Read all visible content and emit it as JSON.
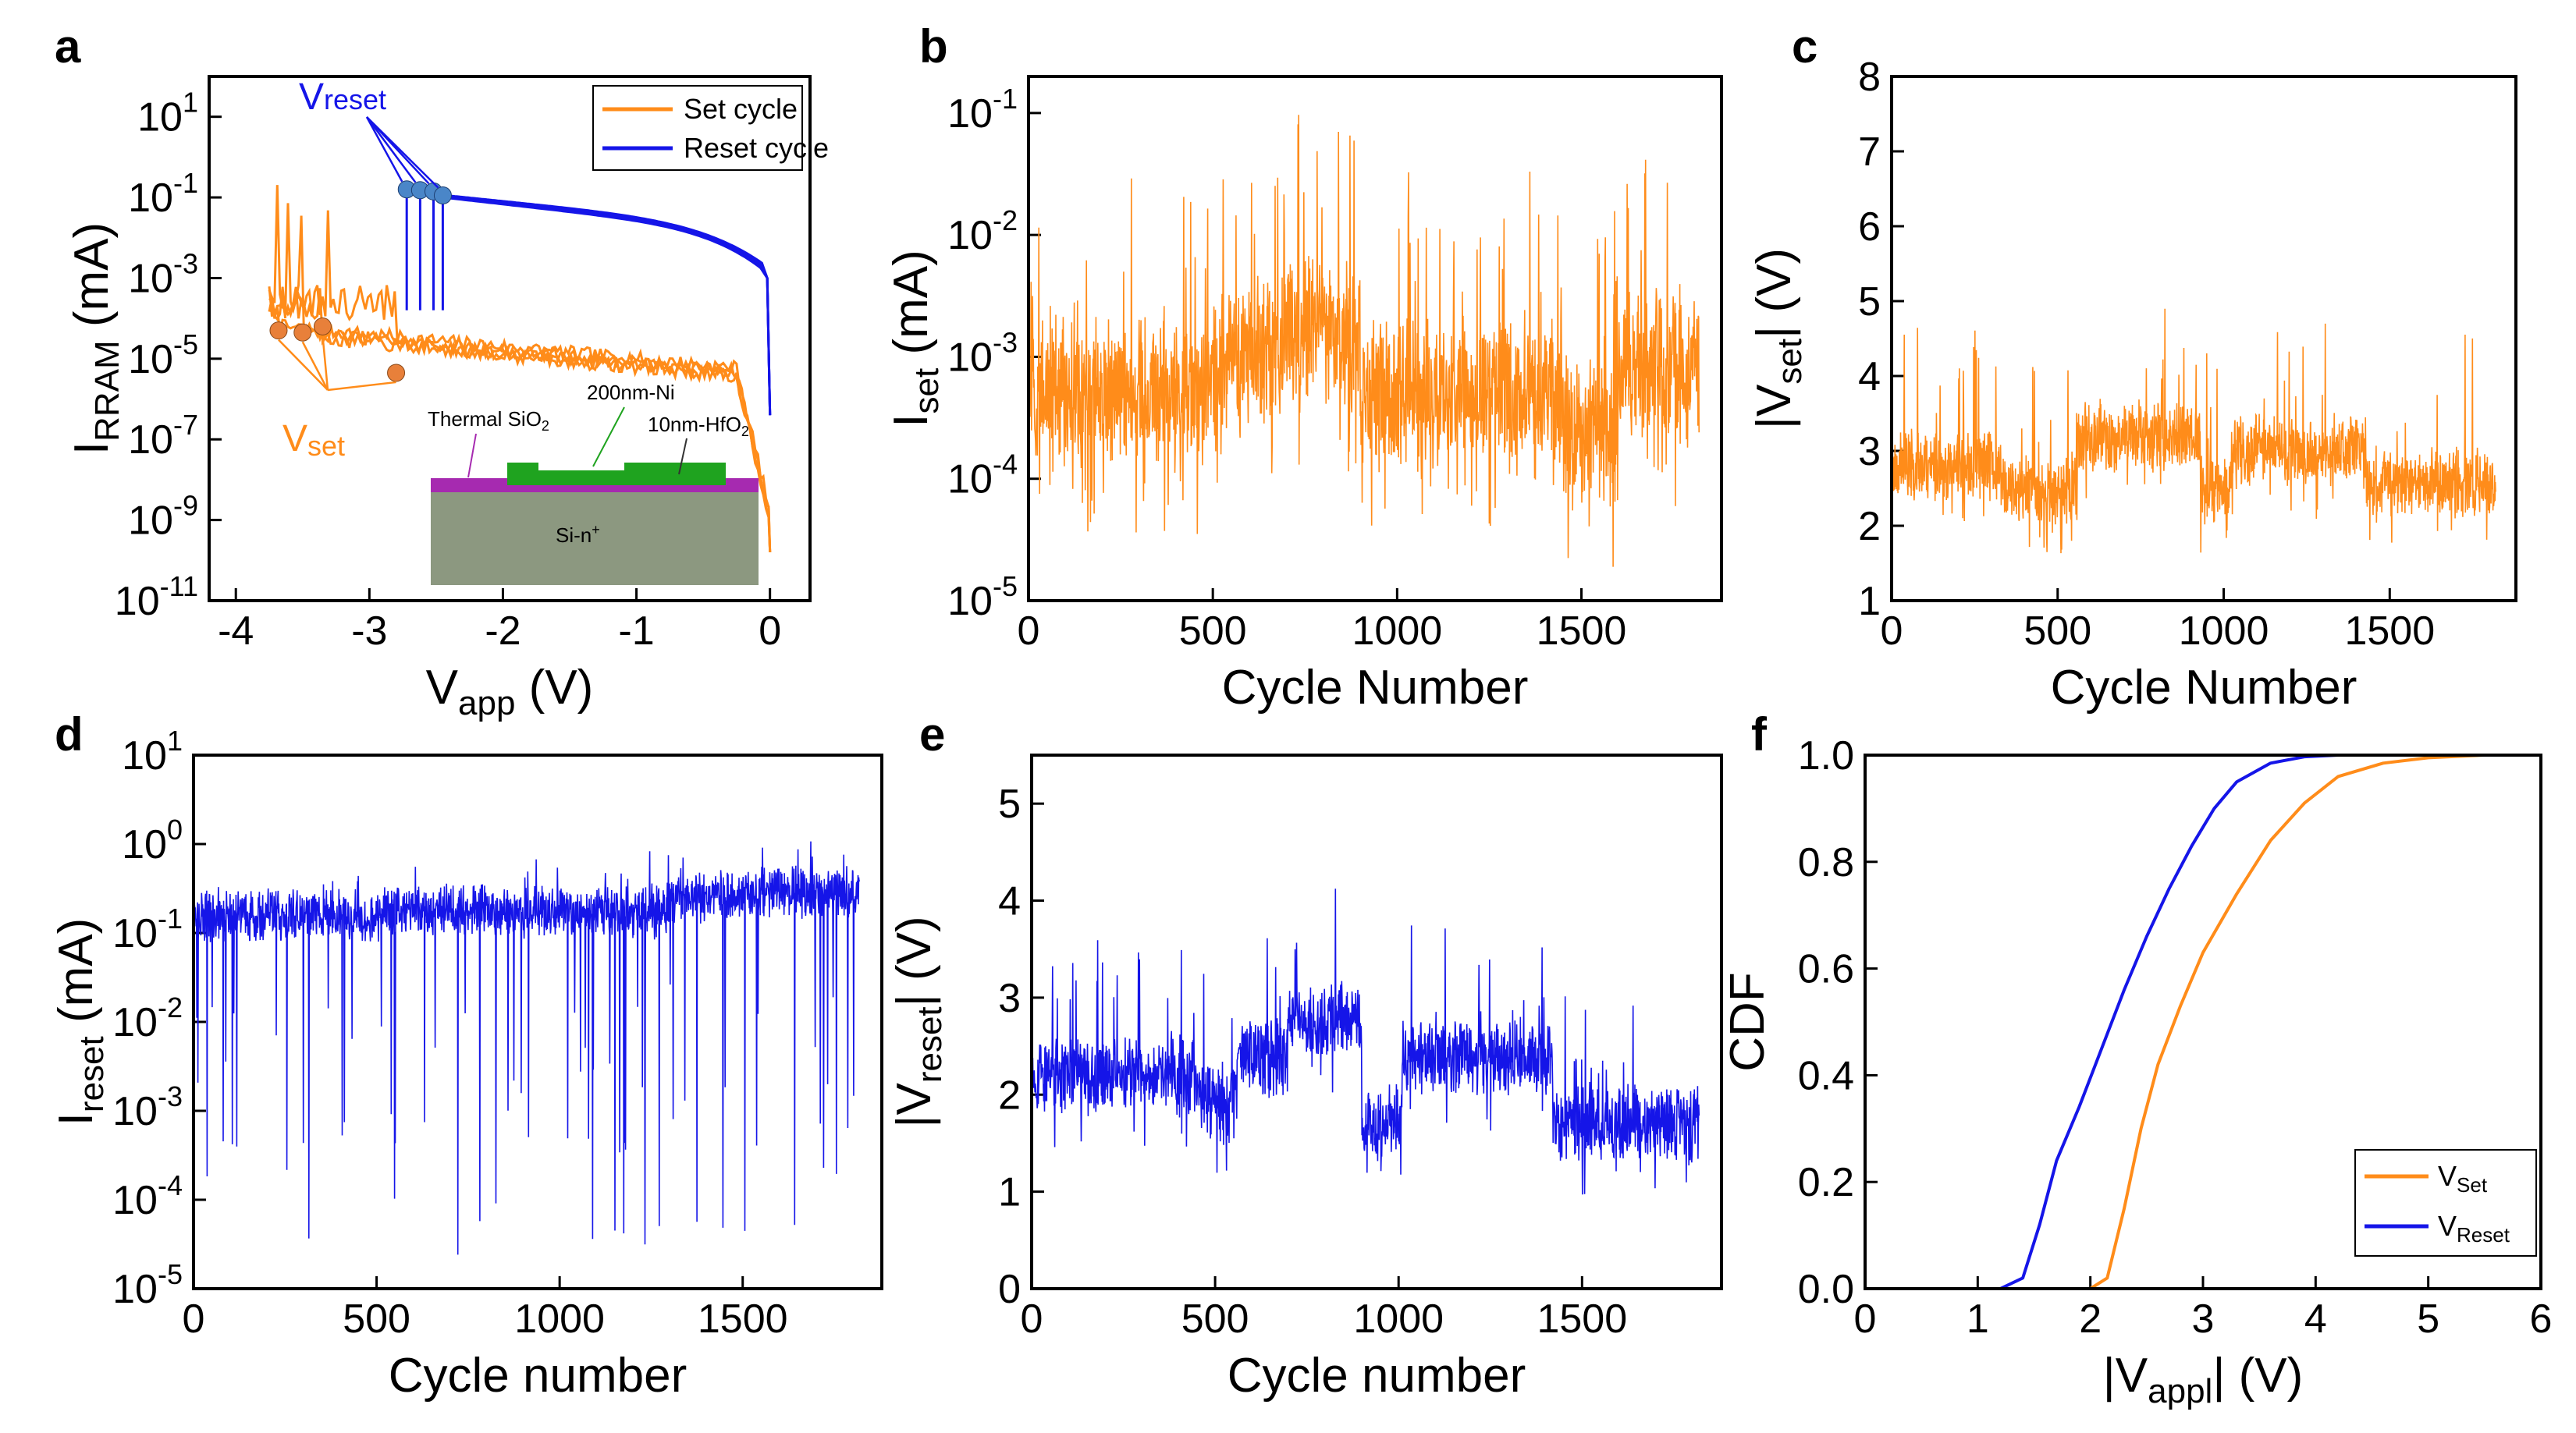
{
  "colors": {
    "set": "#FF8C1A",
    "reset": "#1515E8",
    "axis": "#000000",
    "marker_set": "#E8803A",
    "marker_reset": "#4A86C8",
    "inset_sio2": "#A62AB0",
    "inset_ni": "#1FA31F",
    "inset_si": "#8C9880"
  },
  "chart_data": [
    {
      "panel": "a",
      "type": "line",
      "yscale": "log",
      "xlabel": "V",
      "xlabel_sub": "app",
      "xlabel_unit": " (V)",
      "ylabel": "I",
      "ylabel_sub": "RRAM",
      "ylabel_unit": " (mA)",
      "xlim": [
        -4.2,
        0.3
      ],
      "ylim_exp": [
        -11,
        2
      ],
      "xticks": [
        "-4",
        "-3",
        "-2",
        "-1",
        "0"
      ],
      "ytick_exps": [
        "-11",
        "-9",
        "-7",
        "-5",
        "-3",
        "-1",
        "1"
      ],
      "legend": [
        "Set cycle",
        "Reset cycle"
      ],
      "annotations": {
        "vreset": "V",
        "vreset_sub": "reset",
        "vset": "V",
        "vset_sub": "set"
      },
      "set_points_V": [
        -3.68,
        -3.5,
        -3.35,
        -2.8
      ],
      "reset_points_V": [
        -2.72,
        -2.62,
        -2.52,
        -2.45
      ],
      "inset": {
        "sio2": "Thermal SiO",
        "sio2_sub": "2",
        "ni": "200nm-Ni",
        "hfo2": "10nm-HfO",
        "hfo2_sub": "2",
        "si": "Si-n",
        "si_sup": "+"
      }
    },
    {
      "panel": "b",
      "type": "line",
      "yscale": "log",
      "series": "set",
      "n_cycles": 1820,
      "xlabel": "Cycle Number",
      "ylabel": "I",
      "ylabel_sub": "set",
      "ylabel_unit": " (mA)",
      "xlim": [
        0,
        1880
      ],
      "ylim_exp": [
        -5,
        -0.7
      ],
      "xticks": [
        "0",
        "500",
        "1000",
        "1500"
      ],
      "ytick_exps": [
        "-5",
        "-4",
        "-3",
        "-2",
        "-1"
      ],
      "segments": [
        [
          0,
          500,
          -3.3
        ],
        [
          500,
          700,
          -3.0
        ],
        [
          700,
          900,
          -2.8
        ],
        [
          900,
          1150,
          -3.3
        ],
        [
          1150,
          1450,
          -3.3
        ],
        [
          1450,
          1600,
          -3.6
        ],
        [
          1600,
          1820,
          -3.1
        ]
      ]
    },
    {
      "panel": "c",
      "type": "line",
      "yscale": "linear",
      "series": "set",
      "n_cycles": 1820,
      "xlabel": "Cycle Number",
      "ylabel": "|V",
      "ylabel_sub": "set",
      "ylabel_unit": "| (V)",
      "xlim": [
        0,
        1880
      ],
      "ylim": [
        1,
        8
      ],
      "xticks": [
        "0",
        "500",
        "1000",
        "1500"
      ],
      "yticks": [
        "1",
        "2",
        "3",
        "4",
        "5",
        "6",
        "7",
        "8"
      ],
      "segments": [
        [
          0,
          330,
          2.8
        ],
        [
          330,
          560,
          2.5
        ],
        [
          560,
          930,
          3.2
        ],
        [
          930,
          1020,
          2.5
        ],
        [
          1020,
          1430,
          3.0
        ],
        [
          1430,
          1820,
          2.6
        ]
      ]
    },
    {
      "panel": "d",
      "type": "line",
      "yscale": "log",
      "series": "reset",
      "n_cycles": 1820,
      "xlabel": "Cycle number",
      "ylabel": "I",
      "ylabel_sub": "reset",
      "ylabel_unit": " (mA)",
      "xlim": [
        0,
        1880
      ],
      "ylim_exp": [
        -5,
        1
      ],
      "xticks": [
        "0",
        "500",
        "1000",
        "1500"
      ],
      "ytick_exps": [
        "-5",
        "-4",
        "-3",
        "-2",
        "-1",
        "0",
        "1"
      ],
      "segments": [
        [
          0,
          520,
          -0.8
        ],
        [
          520,
          1000,
          -0.75
        ],
        [
          1000,
          1300,
          -0.75
        ],
        [
          1300,
          1500,
          -0.6
        ],
        [
          1500,
          1820,
          -0.55
        ]
      ]
    },
    {
      "panel": "e",
      "type": "line",
      "yscale": "linear",
      "series": "reset",
      "n_cycles": 1820,
      "xlabel": "Cycle number",
      "ylabel": "|V",
      "ylabel_sub": "reset",
      "ylabel_unit": "| (V)",
      "xlim": [
        0,
        1880
      ],
      "ylim": [
        0,
        5.5
      ],
      "xticks": [
        "0",
        "500",
        "1000",
        "1500"
      ],
      "yticks": [
        "0",
        "1",
        "2",
        "3",
        "4",
        "5"
      ],
      "segments": [
        [
          0,
          450,
          2.2
        ],
        [
          450,
          560,
          1.95
        ],
        [
          560,
          700,
          2.4
        ],
        [
          700,
          900,
          2.8
        ],
        [
          900,
          1010,
          1.7
        ],
        [
          1010,
          1420,
          2.4
        ],
        [
          1420,
          1820,
          1.7
        ]
      ]
    },
    {
      "panel": "f",
      "type": "line",
      "yscale": "linear",
      "xlabel": "|V",
      "xlabel_sub": "appl",
      "xlabel_unit": "| (V)",
      "ylabel": "CDF",
      "xlim": [
        0,
        6
      ],
      "ylim": [
        0,
        1
      ],
      "xticks": [
        "0",
        "1",
        "2",
        "3",
        "4",
        "5",
        "6"
      ],
      "yticks": [
        "0.0",
        "0.2",
        "0.4",
        "0.6",
        "0.8",
        "1.0"
      ],
      "series": [
        {
          "name": "V",
          "sub": "Set",
          "color": "set",
          "x": [
            1.5,
            2.0,
            2.15,
            2.3,
            2.45,
            2.6,
            2.8,
            3.0,
            3.3,
            3.6,
            3.9,
            4.2,
            4.6,
            5.0,
            5.5,
            6.0
          ],
          "y": [
            0,
            0,
            0.02,
            0.15,
            0.3,
            0.42,
            0.53,
            0.63,
            0.74,
            0.84,
            0.91,
            0.96,
            0.985,
            0.995,
            1.0,
            1.0
          ]
        },
        {
          "name": "V",
          "sub": "Reset",
          "color": "reset",
          "x": [
            0.8,
            1.2,
            1.4,
            1.55,
            1.7,
            1.9,
            2.1,
            2.3,
            2.5,
            2.7,
            2.9,
            3.1,
            3.3,
            3.6,
            3.9,
            4.2,
            6.0
          ],
          "y": [
            0,
            0,
            0.02,
            0.12,
            0.24,
            0.34,
            0.45,
            0.56,
            0.66,
            0.75,
            0.83,
            0.9,
            0.95,
            0.985,
            0.997,
            1.0,
            1.0
          ]
        }
      ]
    }
  ]
}
